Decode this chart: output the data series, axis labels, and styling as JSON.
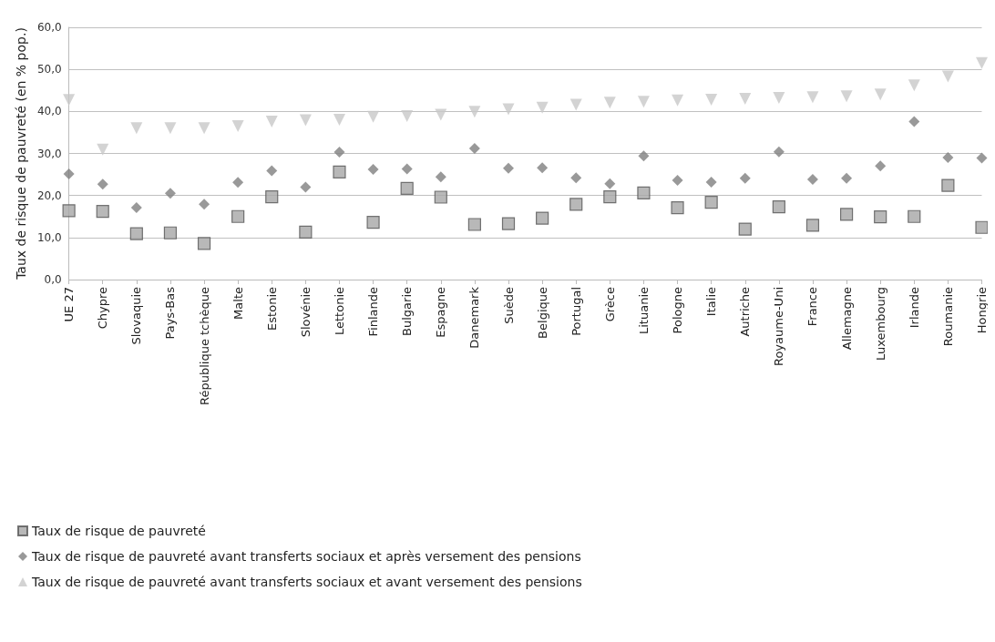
{
  "chart_data": {
    "type": "scatter",
    "ylabel": "Taux de risque de pauvreté (en % pop.)",
    "categories": [
      "UE 27",
      "Chypre",
      "Slovaquie",
      "Pays-Bas",
      "République tchèque",
      "Malte",
      "Estonie",
      "Slovénie",
      "Lettonie",
      "Finlande",
      "Bulgarie",
      "Espagne",
      "Danemark",
      "Suède",
      "Belgique",
      "Portugal",
      "Grèce",
      "Lituanie",
      "Pologne",
      "Italie",
      "Autriche",
      "Royaume-Uni",
      "France",
      "Allemagne",
      "Luxembourg",
      "Irlande",
      "Roumanie",
      "Hongrie"
    ],
    "series": [
      {
        "name": "Taux de risque de pauvreté",
        "color": "#a6a6a6",
        "marker": "square",
        "values": [
          16.4,
          16.2,
          10.9,
          11.1,
          8.6,
          15.0,
          19.7,
          11.3,
          25.6,
          13.6,
          21.7,
          19.6,
          13.1,
          13.3,
          14.6,
          17.9,
          19.7,
          20.6,
          17.1,
          18.4,
          12.0,
          17.3,
          12.9,
          15.5,
          14.9,
          15.0,
          22.4,
          12.4
        ]
      },
      {
        "name": "Taux de risque de pauvreté avant transferts sociaux et après versement des pensions",
        "color": "#7f7f7f",
        "marker": "diamond",
        "values": [
          25.1,
          22.7,
          17.1,
          20.5,
          17.9,
          23.1,
          25.9,
          22.0,
          30.3,
          26.2,
          26.3,
          24.4,
          31.2,
          26.5,
          26.6,
          24.2,
          22.8,
          29.4,
          23.6,
          23.2,
          24.1,
          30.4,
          23.8,
          24.1,
          27.0,
          37.6,
          29.0,
          28.9
        ]
      },
      {
        "name": "Taux de risque de pauvreté avant transferts sociaux et avant versement des pensions",
        "color": "#c8c8c8",
        "marker": "triangle",
        "values": [
          42.7,
          30.9,
          36.0,
          36.0,
          36.0,
          36.5,
          37.6,
          37.9,
          38.0,
          38.7,
          38.9,
          39.2,
          39.9,
          40.5,
          40.9,
          41.6,
          42.1,
          42.3,
          42.6,
          42.8,
          43.0,
          43.2,
          43.4,
          43.6,
          44.0,
          46.2,
          48.3,
          51.5
        ]
      }
    ],
    "ylim": [
      0,
      60
    ],
    "yticks": [
      {
        "value": 0,
        "label": "0,0"
      },
      {
        "value": 10,
        "label": "10,0"
      },
      {
        "value": 20,
        "label": "20,0"
      },
      {
        "value": 30,
        "label": "30,0"
      },
      {
        "value": 40,
        "label": "40,0"
      },
      {
        "value": 50,
        "label": "50,0"
      },
      {
        "value": 60,
        "label": "60,0"
      }
    ],
    "grid": "y",
    "legend": "bottom left"
  }
}
